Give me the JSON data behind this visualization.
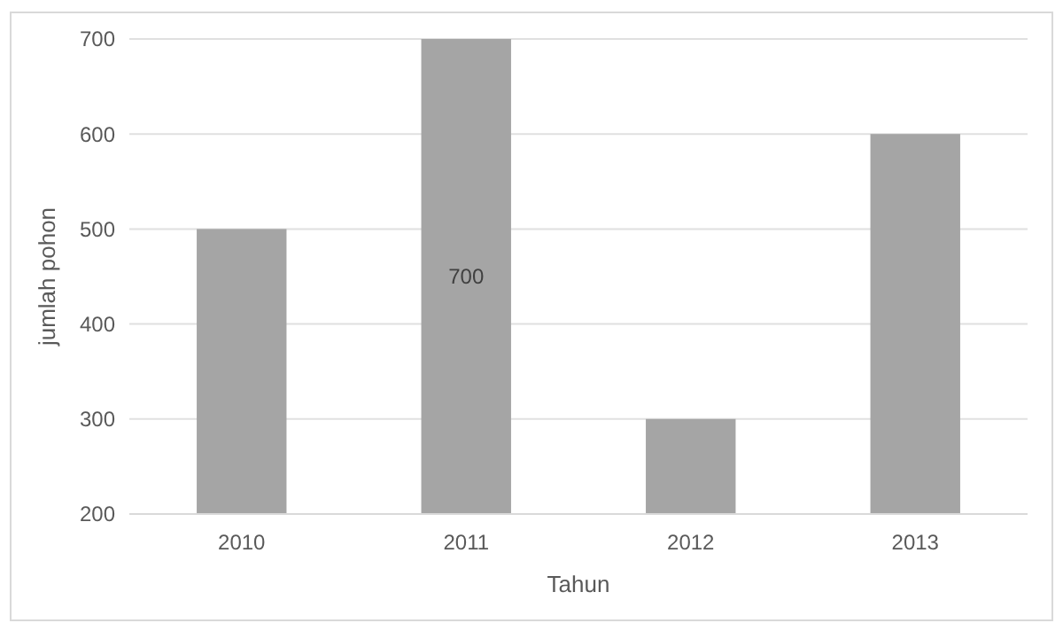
{
  "chart_data": {
    "type": "bar",
    "xlabel": "Tahun",
    "ylabel": "jumlah pohon",
    "categories": [
      "2010",
      "2011",
      "2012",
      "2013"
    ],
    "values": [
      500,
      700,
      300,
      600
    ],
    "color": "#a5a5a5",
    "value_labels": [
      null,
      "700",
      null,
      null
    ],
    "ylim": [
      200,
      700
    ],
    "yticks": [
      200,
      300,
      400,
      500,
      600,
      700
    ],
    "grid": "y"
  }
}
